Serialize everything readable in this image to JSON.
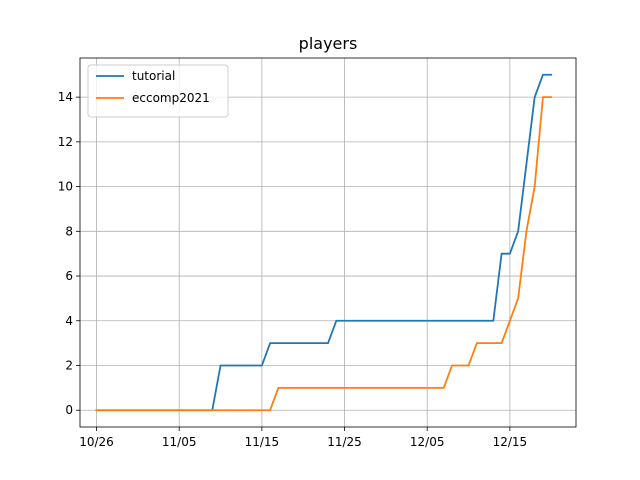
{
  "chart_data": {
    "type": "line",
    "title": "players",
    "xlabel": "",
    "ylabel": "",
    "x_axis": {
      "type": "date",
      "range": [
        "2021-10-24",
        "2021-12-23"
      ],
      "ticks": [
        {
          "value": "2021-10-26",
          "label": "10/26"
        },
        {
          "value": "2021-11-05",
          "label": "11/05"
        },
        {
          "value": "2021-11-15",
          "label": "11/15"
        },
        {
          "value": "2021-11-25",
          "label": "11/25"
        },
        {
          "value": "2021-12-05",
          "label": "12/05"
        },
        {
          "value": "2021-12-15",
          "label": "12/15"
        }
      ]
    },
    "y_axis": {
      "range": [
        -0.75,
        15.75
      ],
      "ticks": [
        0,
        2,
        4,
        6,
        8,
        10,
        12,
        14
      ]
    },
    "grid": true,
    "legend": "top-left",
    "series": [
      {
        "name": "tutorial",
        "color": "#1f77b4",
        "points": [
          {
            "x": "2021-10-26",
            "y": 0
          },
          {
            "x": "2021-11-09",
            "y": 0
          },
          {
            "x": "2021-11-10",
            "y": 2
          },
          {
            "x": "2021-11-15",
            "y": 2
          },
          {
            "x": "2021-11-16",
            "y": 3
          },
          {
            "x": "2021-11-23",
            "y": 3
          },
          {
            "x": "2021-11-24",
            "y": 4
          },
          {
            "x": "2021-12-13",
            "y": 4
          },
          {
            "x": "2021-12-14",
            "y": 7
          },
          {
            "x": "2021-12-15",
            "y": 7
          },
          {
            "x": "2021-12-16",
            "y": 8
          },
          {
            "x": "2021-12-17",
            "y": 11
          },
          {
            "x": "2021-12-18",
            "y": 14
          },
          {
            "x": "2021-12-19",
            "y": 15
          },
          {
            "x": "2021-12-20",
            "y": 15
          }
        ]
      },
      {
        "name": "eccomp2021",
        "color": "#ff7f0e",
        "points": [
          {
            "x": "2021-10-26",
            "y": 0
          },
          {
            "x": "2021-11-16",
            "y": 0
          },
          {
            "x": "2021-11-17",
            "y": 1
          },
          {
            "x": "2021-12-07",
            "y": 1
          },
          {
            "x": "2021-12-08",
            "y": 2
          },
          {
            "x": "2021-12-10",
            "y": 2
          },
          {
            "x": "2021-12-11",
            "y": 3
          },
          {
            "x": "2021-12-14",
            "y": 3
          },
          {
            "x": "2021-12-16",
            "y": 5
          },
          {
            "x": "2021-12-17",
            "y": 8
          },
          {
            "x": "2021-12-18",
            "y": 10
          },
          {
            "x": "2021-12-19",
            "y": 14
          },
          {
            "x": "2021-12-20",
            "y": 14
          }
        ]
      }
    ]
  }
}
